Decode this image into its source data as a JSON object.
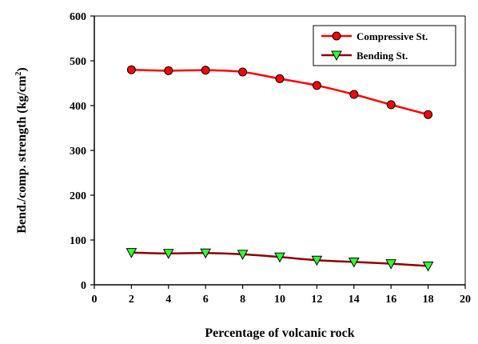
{
  "chart_data": {
    "type": "line",
    "xlabel": "Percentage of volcanic rock",
    "ylabel": "Bend./comp. strength (kg/cm",
    "ylabel_sup": "2",
    "ylabel_close": ")",
    "xlim": [
      0,
      20
    ],
    "ylim": [
      0,
      600
    ],
    "x_ticks": [
      "0",
      "2",
      "4",
      "6",
      "8",
      "10",
      "12",
      "14",
      "16",
      "18",
      "20"
    ],
    "y_ticks": [
      "0",
      "100",
      "200",
      "300",
      "400",
      "500",
      "600"
    ],
    "grid": false,
    "legend_position": "top-right",
    "x": [
      2,
      4,
      6,
      8,
      10,
      12,
      14,
      16,
      18
    ],
    "series": [
      {
        "name": "Compressive St.",
        "values": [
          480,
          478,
          479,
          475,
          460,
          445,
          425,
          402,
          380
        ],
        "color": "#ff0000",
        "line_color": "#ff0000",
        "marker": "circle"
      },
      {
        "name": "Bending St.",
        "values": [
          72,
          70,
          71,
          68,
          62,
          55,
          51,
          47,
          42
        ],
        "color": "#33ff33",
        "line_color": "#8b0000",
        "marker": "triangle-down"
      }
    ]
  }
}
